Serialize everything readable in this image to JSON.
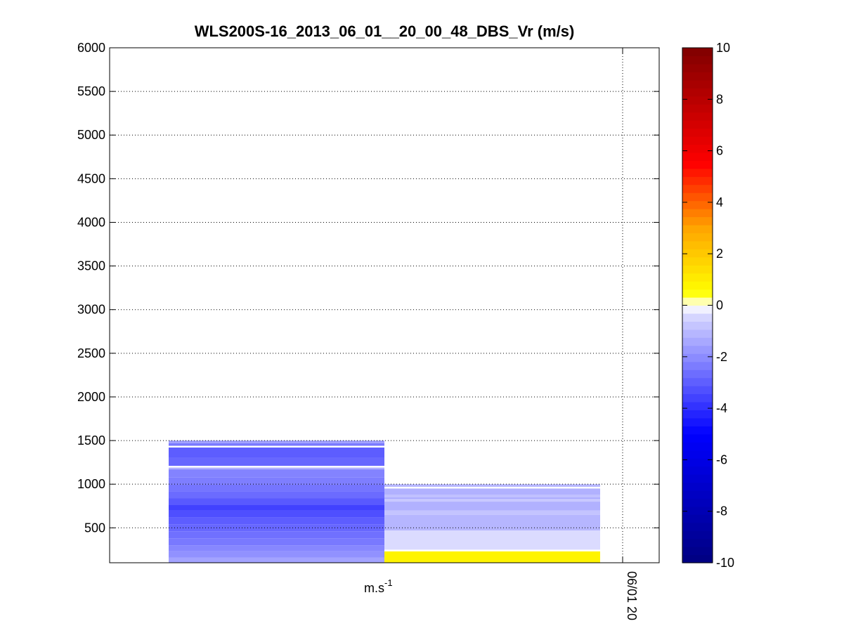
{
  "chart_data": {
    "type": "heatmap",
    "title": "WLS200S-16_2013_06_01__20_00_48_DBS_Vr (m/s)",
    "xlabel": "",
    "ylabel": "",
    "ylim": [
      100,
      6000
    ],
    "yticks": [
      500,
      1000,
      1500,
      2000,
      2500,
      3000,
      3500,
      4000,
      4500,
      5000,
      5500,
      6000
    ],
    "grid": true,
    "x_tick_label": "06/01 20",
    "unit_label": {
      "base": "m.s",
      "exponent": "-1"
    },
    "colorbar": {
      "range": [
        -10,
        10
      ],
      "ticks": [
        -10,
        -8,
        -6,
        -4,
        -2,
        0,
        2,
        4,
        6,
        8,
        10
      ],
      "placement": "right"
    },
    "columns": [
      {
        "name": "",
        "bins": [
          {
            "bottom": 100,
            "top": 160,
            "value": -1.5
          },
          {
            "bottom": 160,
            "top": 230,
            "value": -1.9
          },
          {
            "bottom": 230,
            "top": 300,
            "value": -2.1
          },
          {
            "bottom": 300,
            "top": 380,
            "value": -2.4
          },
          {
            "bottom": 380,
            "top": 460,
            "value": -2.6
          },
          {
            "bottom": 460,
            "top": 540,
            "value": -2.8
          },
          {
            "bottom": 540,
            "top": 620,
            "value": -3.0
          },
          {
            "bottom": 620,
            "top": 700,
            "value": -3.3
          },
          {
            "bottom": 700,
            "top": 760,
            "value": -3.6
          },
          {
            "bottom": 760,
            "top": 840,
            "value": -3.1
          },
          {
            "bottom": 840,
            "top": 920,
            "value": -2.7
          },
          {
            "bottom": 920,
            "top": 1000,
            "value": -2.5
          },
          {
            "bottom": 1000,
            "top": 1080,
            "value": -2.3
          },
          {
            "bottom": 1080,
            "top": 1170,
            "value": -2.2
          },
          {
            "bottom": 1170,
            "top": 1190,
            "value": -1.2
          },
          {
            "bottom": 1190,
            "top": 1210,
            "value": null
          },
          {
            "bottom": 1210,
            "top": 1300,
            "value": -2.8
          },
          {
            "bottom": 1300,
            "top": 1420,
            "value": -3.0
          },
          {
            "bottom": 1420,
            "top": 1440,
            "value": null
          },
          {
            "bottom": 1440,
            "top": 1470,
            "value": -2.4
          },
          {
            "bottom": 1470,
            "top": 1500,
            "value": -1.6
          }
        ]
      },
      {
        "name": "",
        "bins": [
          {
            "bottom": 100,
            "top": 230,
            "value": 0.8
          },
          {
            "bottom": 230,
            "top": 250,
            "value": null
          },
          {
            "bottom": 250,
            "top": 470,
            "value": -0.4
          },
          {
            "bottom": 470,
            "top": 650,
            "value": -1.1
          },
          {
            "bottom": 650,
            "top": 700,
            "value": -0.8
          },
          {
            "bottom": 700,
            "top": 800,
            "value": -1.2
          },
          {
            "bottom": 800,
            "top": 830,
            "value": -0.7
          },
          {
            "bottom": 830,
            "top": 850,
            "value": -1.3
          },
          {
            "bottom": 850,
            "top": 880,
            "value": -0.9
          },
          {
            "bottom": 880,
            "top": 950,
            "value": -1.2
          },
          {
            "bottom": 950,
            "top": 970,
            "value": null
          },
          {
            "bottom": 970,
            "top": 1000,
            "value": -1.1
          }
        ]
      }
    ]
  }
}
